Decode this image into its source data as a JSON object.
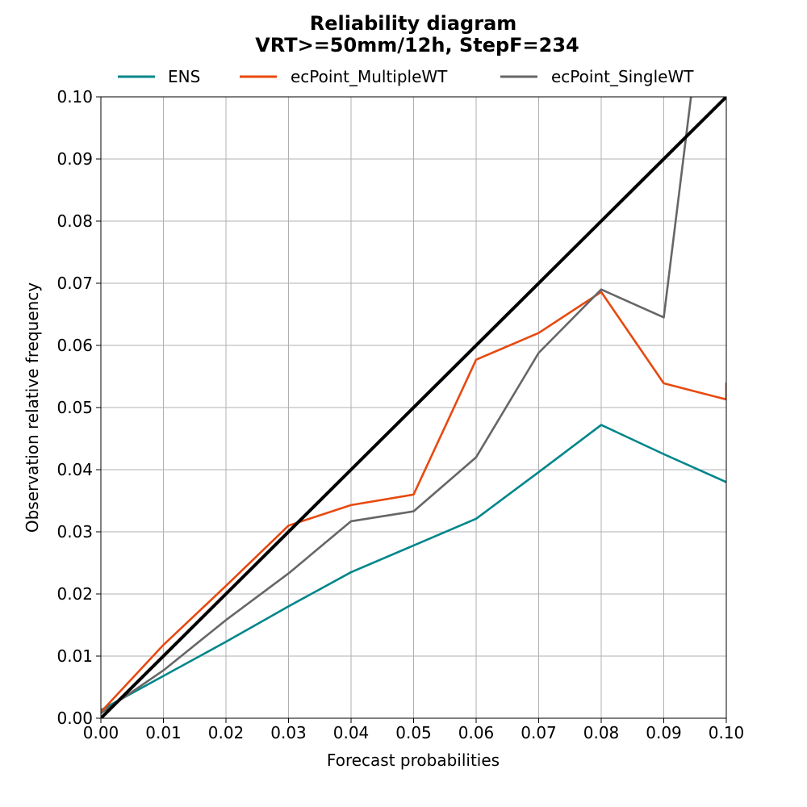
{
  "chart_data": {
    "type": "line",
    "title": "Reliability diagram",
    "subtitle": "VRT>=50mm/12h, StepF=234",
    "xlabel": "Forecast probabilities",
    "ylabel": "Observation relative frequency",
    "xlim": [
      0.0,
      0.1
    ],
    "ylim": [
      0.0,
      0.1
    ],
    "xticks": [
      0.0,
      0.01,
      0.02,
      0.03,
      0.04,
      0.05,
      0.06,
      0.07,
      0.08,
      0.09,
      0.1
    ],
    "yticks": [
      0.0,
      0.01,
      0.02,
      0.03,
      0.04,
      0.05,
      0.06,
      0.07,
      0.08,
      0.09,
      0.1
    ],
    "xtick_labels": [
      "0.00",
      "0.01",
      "0.02",
      "0.03",
      "0.04",
      "0.05",
      "0.06",
      "0.07",
      "0.08",
      "0.09",
      "0.10"
    ],
    "ytick_labels": [
      "0.00",
      "0.01",
      "0.02",
      "0.03",
      "0.04",
      "0.05",
      "0.06",
      "0.07",
      "0.08",
      "0.09",
      "0.10"
    ],
    "grid": true,
    "legend_position": "top-center",
    "series": [
      {
        "name": "ENS",
        "color": "#00868b",
        "x": [
          0.0,
          0.01,
          0.02,
          0.03,
          0.04,
          0.05,
          0.06,
          0.07,
          0.08,
          0.09,
          0.1
        ],
        "y": [
          0.0013,
          0.0068,
          0.0123,
          0.018,
          0.0235,
          0.0278,
          0.0321,
          0.0396,
          0.0472,
          0.0425,
          0.038
        ]
      },
      {
        "name": "ecPoint_MultipleWT",
        "color": "#e8490f",
        "x": [
          0.0,
          0.01,
          0.02,
          0.03,
          0.04,
          0.05,
          0.06,
          0.07,
          0.08,
          0.09,
          0.1,
          0.1
        ],
        "y": [
          0.001,
          0.0118,
          0.0213,
          0.031,
          0.0343,
          0.036,
          0.0577,
          0.062,
          0.0686,
          0.0539,
          0.0513,
          0.054
        ]
      },
      {
        "name": "ecPoint_SingleWT",
        "color": "#666666",
        "x": [
          0.0,
          0.01,
          0.02,
          0.03,
          0.04,
          0.05,
          0.06,
          0.07,
          0.08,
          0.09,
          0.1
        ],
        "y": [
          0.0008,
          0.0077,
          0.0158,
          0.0233,
          0.0317,
          0.0333,
          0.042,
          0.0588,
          0.069,
          0.0645,
          0.146
        ]
      },
      {
        "name": "perfect-reliability",
        "color": "#000000",
        "x": [
          0.0,
          0.1
        ],
        "y": [
          0.0,
          0.1
        ]
      }
    ]
  }
}
